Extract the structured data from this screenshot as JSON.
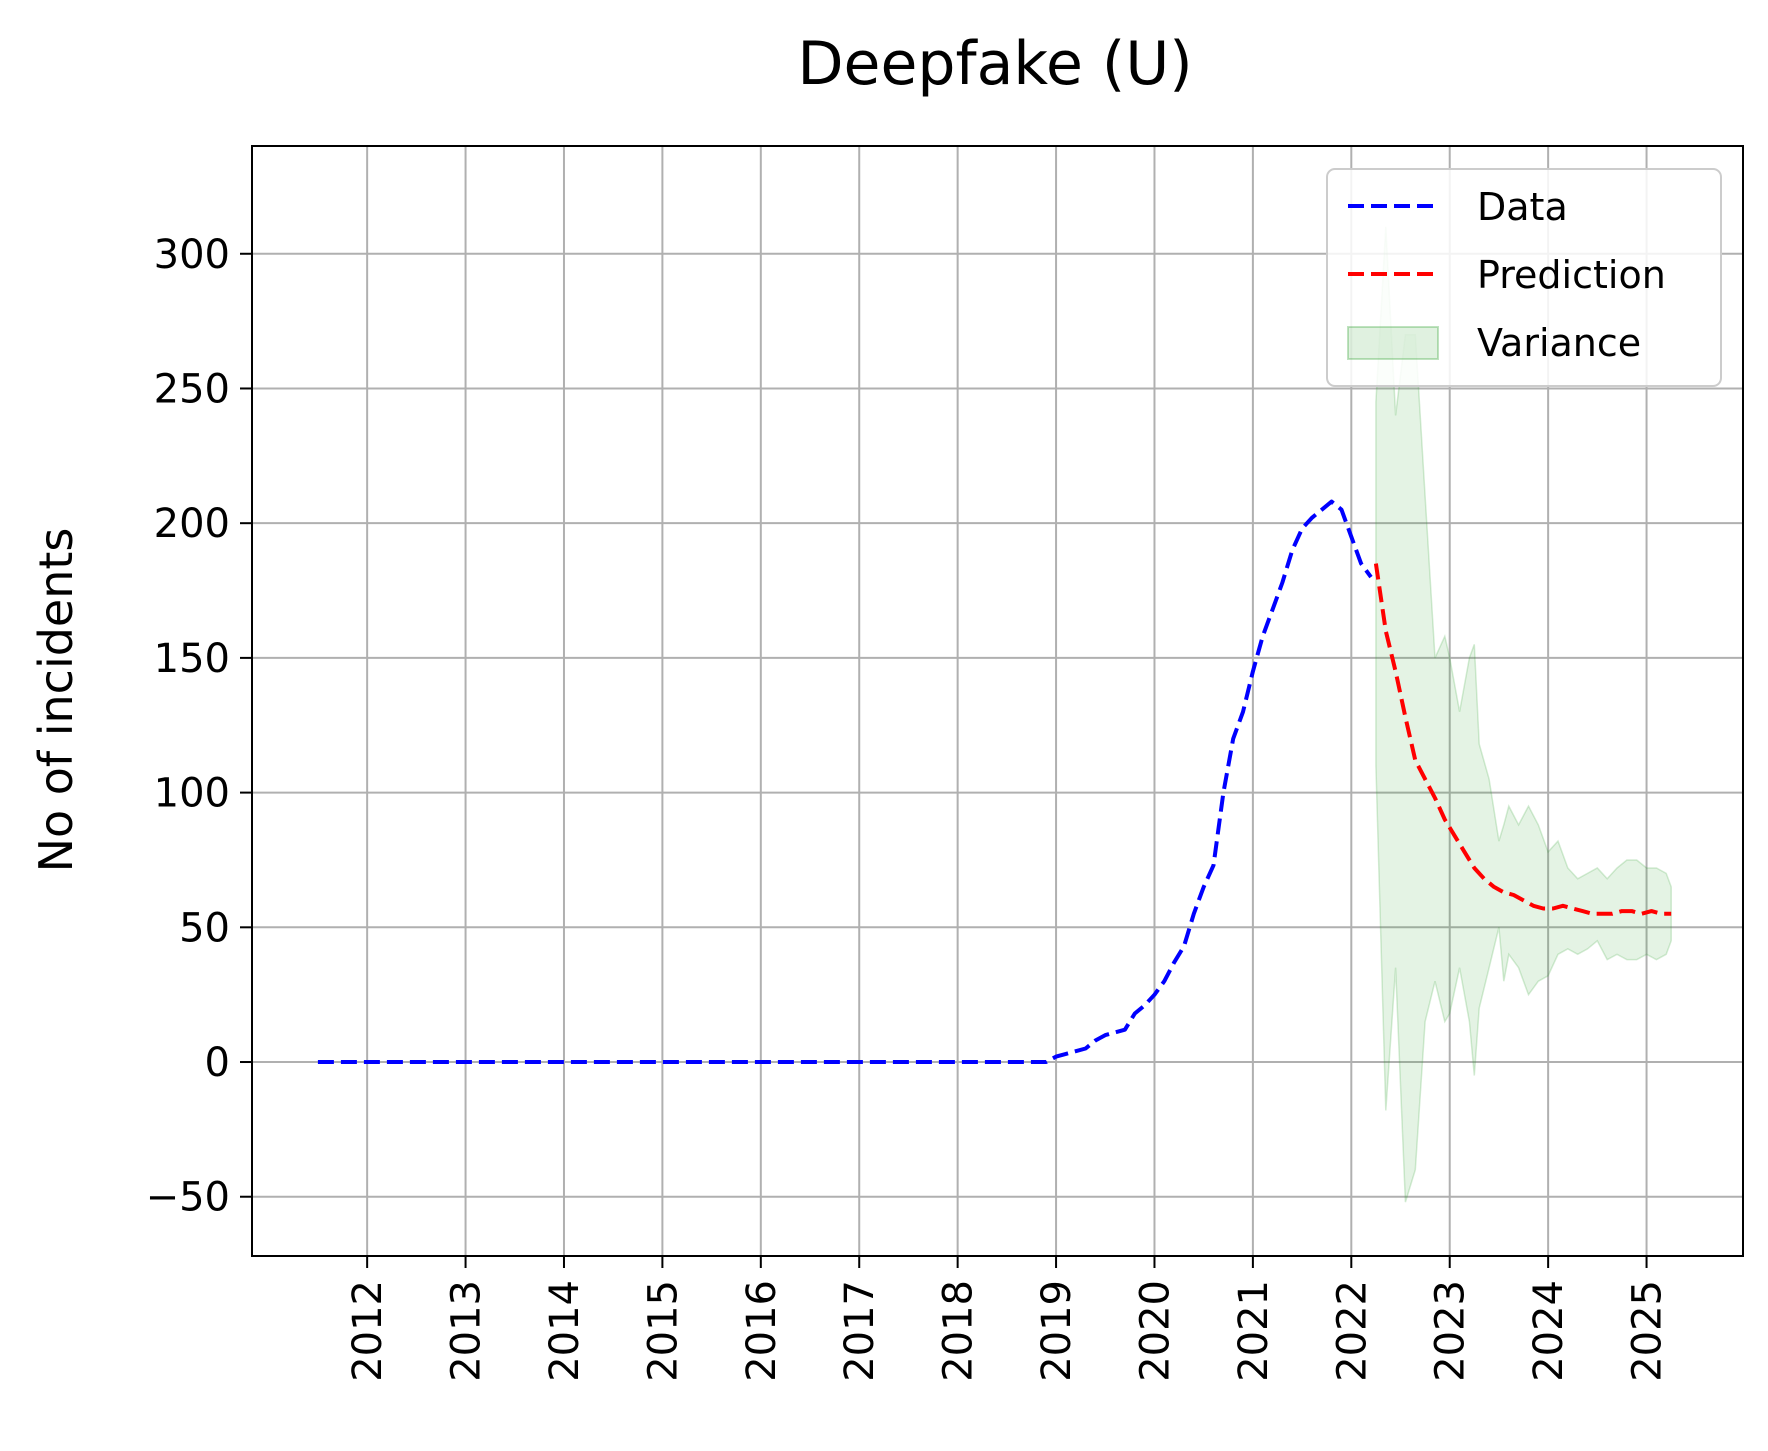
{
  "chart_data": {
    "type": "line",
    "title": "Deepfake (U)",
    "xlabel": "",
    "ylabel": "No of incidents",
    "xlim": [
      2010.83,
      2025.98
    ],
    "ylim": [
      -72,
      340
    ],
    "x_ticks": [
      2012,
      2013,
      2014,
      2015,
      2016,
      2017,
      2018,
      2019,
      2020,
      2021,
      2022,
      2023,
      2024,
      2025
    ],
    "x_tick_labels": [
      "2012",
      "2013",
      "2014",
      "2015",
      "2016",
      "2017",
      "2018",
      "2019",
      "2020",
      "2021",
      "2022",
      "2023",
      "2024",
      "2025"
    ],
    "y_ticks": [
      -50,
      0,
      50,
      100,
      150,
      200,
      250,
      300
    ],
    "y_tick_labels": [
      "−50",
      "0",
      "50",
      "100",
      "150",
      "200",
      "250",
      "300"
    ],
    "grid": true,
    "legend_position": "upper-right",
    "colors": {
      "data": "#0000ff",
      "prediction": "#ff0000",
      "variance": "#2ca02c"
    },
    "series": [
      {
        "name": "Data",
        "style": "dashed",
        "x": [
          2011.5,
          2012,
          2013,
          2014,
          2015,
          2016,
          2017,
          2018,
          2018.9,
          2019.0,
          2019.1,
          2019.3,
          2019.4,
          2019.5,
          2019.7,
          2019.8,
          2019.9,
          2020.0,
          2020.1,
          2020.2,
          2020.3,
          2020.4,
          2020.5,
          2020.6,
          2020.7,
          2020.8,
          2020.9,
          2021.0,
          2021.1,
          2021.2,
          2021.3,
          2021.4,
          2021.5,
          2021.6,
          2021.7,
          2021.8,
          2021.9,
          2022.0,
          2022.1,
          2022.2
        ],
        "y": [
          0,
          0,
          0,
          0,
          0,
          0,
          0,
          0,
          0,
          2,
          3,
          5,
          8,
          10,
          12,
          18,
          21,
          25,
          30,
          37,
          43,
          55,
          65,
          73,
          100,
          120,
          130,
          145,
          158,
          168,
          178,
          190,
          198,
          202,
          205,
          208,
          205,
          195,
          185,
          180
        ]
      },
      {
        "name": "Prediction",
        "style": "dashed",
        "x": [
          2022.25,
          2022.35,
          2022.45,
          2022.55,
          2022.65,
          2022.75,
          2022.85,
          2022.95,
          2023.05,
          2023.15,
          2023.25,
          2023.35,
          2023.45,
          2023.55,
          2023.65,
          2023.75,
          2023.85,
          2023.95,
          2024.05,
          2024.15,
          2024.25,
          2024.35,
          2024.45,
          2024.55,
          2024.65,
          2024.75,
          2024.85,
          2024.95,
          2025.05,
          2025.15,
          2025.25
        ],
        "y": [
          185,
          160,
          145,
          128,
          112,
          105,
          98,
          90,
          84,
          78,
          72,
          68,
          65,
          63,
          62,
          60,
          58,
          57,
          57,
          58,
          57,
          56,
          55,
          55,
          55,
          56,
          56,
          55,
          56,
          55,
          55
        ]
      }
    ],
    "variance": {
      "name": "Variance",
      "x": [
        2022.25,
        2022.35,
        2022.45,
        2022.55,
        2022.65,
        2022.75,
        2022.85,
        2022.95,
        2023.0,
        2023.1,
        2023.2,
        2023.25,
        2023.3,
        2023.4,
        2023.5,
        2023.55,
        2023.6,
        2023.7,
        2023.8,
        2023.9,
        2024.0,
        2024.1,
        2024.2,
        2024.3,
        2024.4,
        2024.5,
        2024.6,
        2024.7,
        2024.8,
        2024.9,
        2025.0,
        2025.1,
        2025.2,
        2025.25
      ],
      "upper": [
        245,
        310,
        240,
        270,
        270,
        210,
        150,
        158,
        150,
        130,
        150,
        155,
        118,
        105,
        82,
        88,
        95,
        88,
        95,
        88,
        78,
        82,
        72,
        68,
        70,
        72,
        68,
        72,
        75,
        75,
        72,
        72,
        70,
        65
      ],
      "lower": [
        110,
        -18,
        35,
        -52,
        -40,
        15,
        30,
        15,
        18,
        35,
        15,
        -5,
        20,
        35,
        50,
        30,
        40,
        35,
        25,
        30,
        32,
        40,
        42,
        40,
        42,
        45,
        38,
        40,
        38,
        38,
        40,
        38,
        40,
        45
      ]
    }
  }
}
